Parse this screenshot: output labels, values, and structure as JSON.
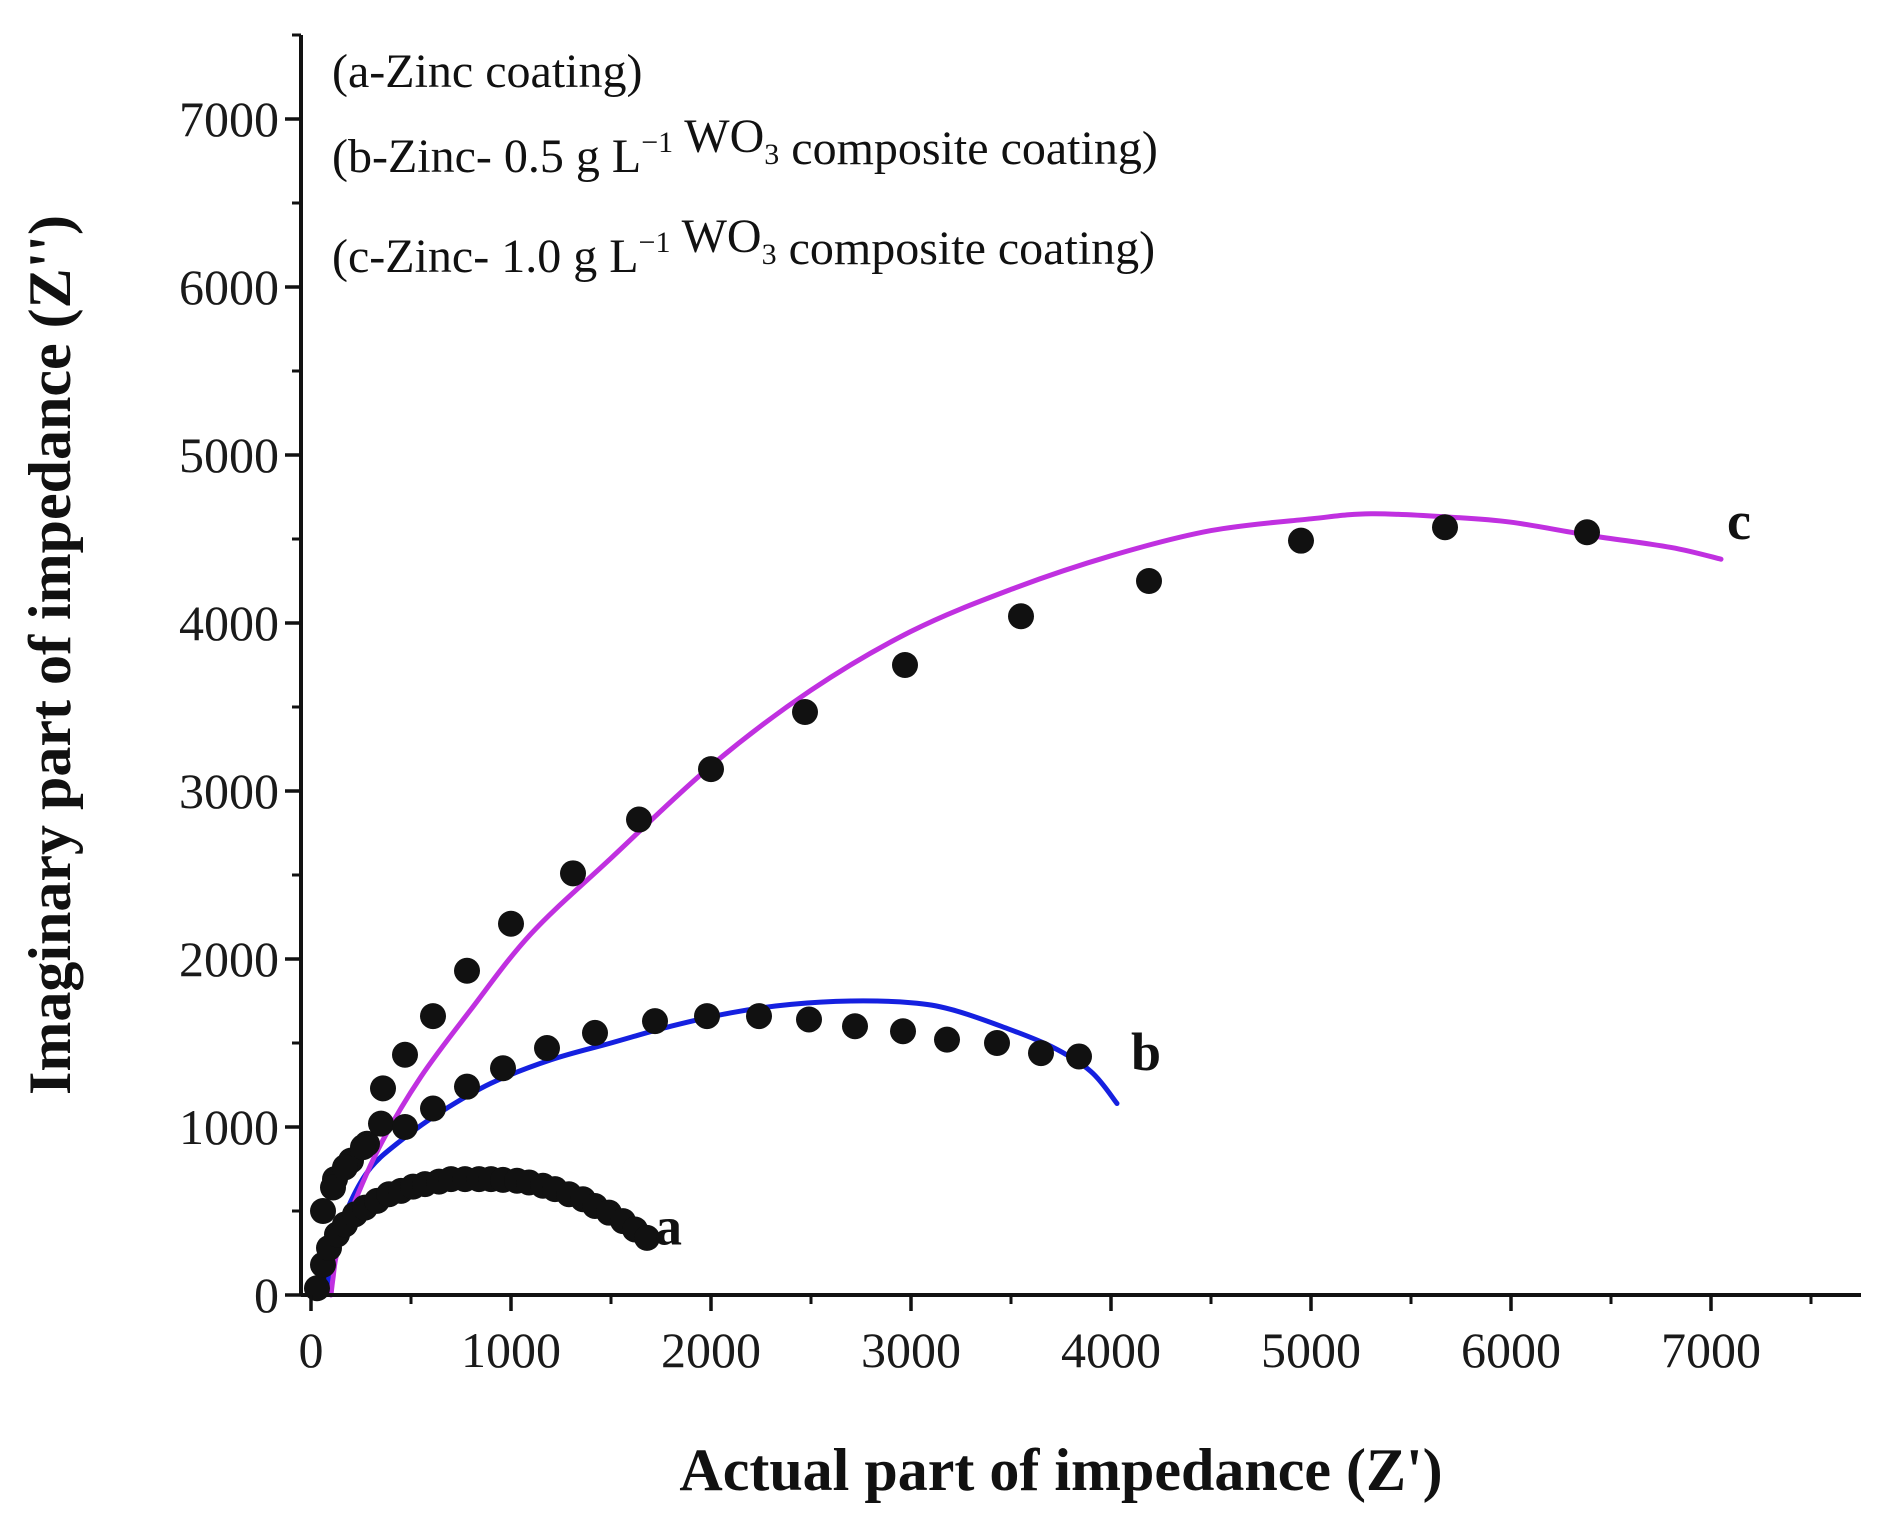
{
  "chart_data": {
    "type": "scatter",
    "title": "",
    "xlabel": "Actual part of impedance (Z')",
    "ylabel": "Imaginary part of impedance (Z'')",
    "xlim": [
      -50,
      7750
    ],
    "ylim": [
      0,
      7500
    ],
    "xticks": [
      0,
      1000,
      2000,
      3000,
      4000,
      5000,
      6000,
      7000
    ],
    "yticks": [
      0,
      1000,
      2000,
      3000,
      4000,
      5000,
      6000,
      7000
    ],
    "legend": {
      "placement": "top-left",
      "entries": [
        {
          "pre": "(a-Zinc coating)",
          "sup": "",
          "mid": "",
          "sub": "",
          "post": ""
        },
        {
          "pre": "(b-Zinc- 0.5 g L",
          "sup": "−1",
          "mid": " WO",
          "sub": "3",
          "post": " composite coating)"
        },
        {
          "pre": "(c-Zinc- 1.0 g L",
          "sup": "−1",
          "mid": " WO",
          "sub": "3",
          "post": " composite coating)"
        }
      ]
    },
    "series": [
      {
        "name": "a",
        "label": "a",
        "color": "#111111",
        "markers": [
          [
            30,
            40
          ],
          [
            60,
            180
          ],
          [
            90,
            280
          ],
          [
            130,
            360
          ],
          [
            170,
            420
          ],
          [
            220,
            480
          ],
          [
            270,
            520
          ],
          [
            330,
            560
          ],
          [
            390,
            600
          ],
          [
            450,
            620
          ],
          [
            510,
            645
          ],
          [
            570,
            660
          ],
          [
            640,
            675
          ],
          [
            700,
            690
          ],
          [
            770,
            690
          ],
          [
            840,
            690
          ],
          [
            900,
            690
          ],
          [
            960,
            685
          ],
          [
            1030,
            680
          ],
          [
            1090,
            670
          ],
          [
            1160,
            650
          ],
          [
            1220,
            630
          ],
          [
            1290,
            600
          ],
          [
            1360,
            570
          ],
          [
            1420,
            530
          ],
          [
            1490,
            490
          ],
          [
            1560,
            440
          ],
          [
            1620,
            390
          ],
          [
            1680,
            340
          ]
        ],
        "fit": [
          [
            60,
            40
          ],
          [
            120,
            250
          ],
          [
            250,
            450
          ],
          [
            450,
            580
          ],
          [
            700,
            660
          ],
          [
            900,
            690
          ],
          [
            1100,
            680
          ],
          [
            1300,
            610
          ],
          [
            1500,
            500
          ],
          [
            1620,
            420
          ],
          [
            1700,
            360
          ]
        ]
      },
      {
        "name": "b",
        "label": "b",
        "color": "#1520e0",
        "markers": [
          [
            60,
            500
          ],
          [
            120,
            690
          ],
          [
            200,
            800
          ],
          [
            280,
            900
          ],
          [
            350,
            1020
          ],
          [
            470,
            1000
          ],
          [
            610,
            1110
          ],
          [
            780,
            1240
          ],
          [
            960,
            1350
          ],
          [
            1180,
            1470
          ],
          [
            1420,
            1560
          ],
          [
            1720,
            1630
          ],
          [
            1980,
            1660
          ],
          [
            2240,
            1660
          ],
          [
            2490,
            1640
          ],
          [
            2720,
            1600
          ],
          [
            2960,
            1570
          ],
          [
            3180,
            1520
          ],
          [
            3430,
            1500
          ],
          [
            3650,
            1440
          ],
          [
            3840,
            1420
          ]
        ],
        "fit": [
          [
            80,
            30
          ],
          [
            120,
            300
          ],
          [
            200,
            560
          ],
          [
            300,
            760
          ],
          [
            450,
            920
          ],
          [
            650,
            1090
          ],
          [
            900,
            1260
          ],
          [
            1200,
            1400
          ],
          [
            1500,
            1500
          ],
          [
            1800,
            1600
          ],
          [
            2100,
            1680
          ],
          [
            2400,
            1730
          ],
          [
            2700,
            1750
          ],
          [
            3000,
            1740
          ],
          [
            3200,
            1700
          ],
          [
            3450,
            1600
          ],
          [
            3700,
            1480
          ],
          [
            3900,
            1330
          ],
          [
            4030,
            1140
          ]
        ]
      },
      {
        "name": "c",
        "label": "c",
        "color": "#c030e0",
        "markers": [
          [
            110,
            640
          ],
          [
            170,
            760
          ],
          [
            260,
            880
          ],
          [
            360,
            1230
          ],
          [
            470,
            1430
          ],
          [
            610,
            1660
          ],
          [
            780,
            1930
          ],
          [
            1000,
            2210
          ],
          [
            1310,
            2510
          ],
          [
            1640,
            2830
          ],
          [
            2000,
            3130
          ],
          [
            2470,
            3470
          ],
          [
            2970,
            3750
          ],
          [
            3550,
            4040
          ],
          [
            4190,
            4250
          ],
          [
            4950,
            4490
          ],
          [
            5670,
            4570
          ],
          [
            6380,
            4540
          ]
        ],
        "fit": [
          [
            100,
            0
          ],
          [
            110,
            100
          ],
          [
            130,
            250
          ],
          [
            200,
            500
          ],
          [
            350,
            900
          ],
          [
            550,
            1300
          ],
          [
            800,
            1700
          ],
          [
            1100,
            2150
          ],
          [
            1500,
            2600
          ],
          [
            2000,
            3150
          ],
          [
            2500,
            3600
          ],
          [
            3000,
            3950
          ],
          [
            3500,
            4200
          ],
          [
            4000,
            4400
          ],
          [
            4500,
            4550
          ],
          [
            5000,
            4620
          ],
          [
            5300,
            4650
          ],
          [
            5700,
            4630
          ],
          [
            6000,
            4600
          ],
          [
            6400,
            4520
          ],
          [
            6800,
            4450
          ],
          [
            7050,
            4380
          ]
        ]
      }
    ]
  }
}
